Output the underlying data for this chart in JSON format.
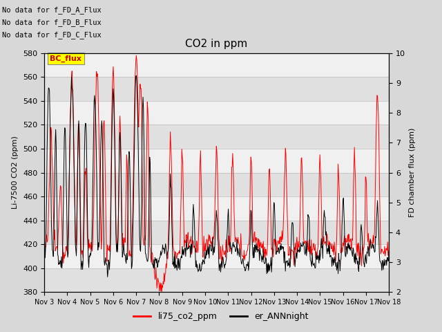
{
  "title": "CO2 in ppm",
  "ylabel_left": "Li-7500 CO2 (ppm)",
  "ylabel_right": "FD chamber flux (ppm)",
  "ylim_left": [
    380,
    580
  ],
  "ylim_right": [
    2.0,
    10.0
  ],
  "yticks_left": [
    380,
    400,
    420,
    440,
    460,
    480,
    500,
    520,
    540,
    560,
    580
  ],
  "yticks_right": [
    2.0,
    3.0,
    4.0,
    5.0,
    6.0,
    7.0,
    8.0,
    9.0,
    10.0
  ],
  "xtick_labels": [
    "Nov 3",
    "Nov 4",
    "Nov 5",
    "Nov 6",
    "Nov 7",
    "Nov 8",
    "Nov 9",
    "Nov 10",
    "Nov 11",
    "Nov 12",
    "Nov 13",
    "Nov 14",
    "Nov 15",
    "Nov 16",
    "Nov 17",
    "Nov 18"
  ],
  "no_data_texts": [
    "No data for f_FD_A_Flux",
    "No data for f_FD_B_Flux",
    "No data for f_FD_C_Flux"
  ],
  "legend_labels": [
    "li75_co2_ppm",
    "er_ANNnight"
  ],
  "legend_colors": [
    "#ff0000",
    "#000000"
  ],
  "line1_color": "#ff0000",
  "line2_color": "#000000",
  "background_color": "#d8d8d8",
  "plot_bg_color": "#e8e8e8",
  "band_color": "#e8e8e8",
  "band_color2": "#f8f8f8",
  "bc_flux_box_color": "#ffff00",
  "bc_flux_text_color": "#cc0000",
  "figsize": [
    6.4,
    4.8
  ],
  "dpi": 100
}
